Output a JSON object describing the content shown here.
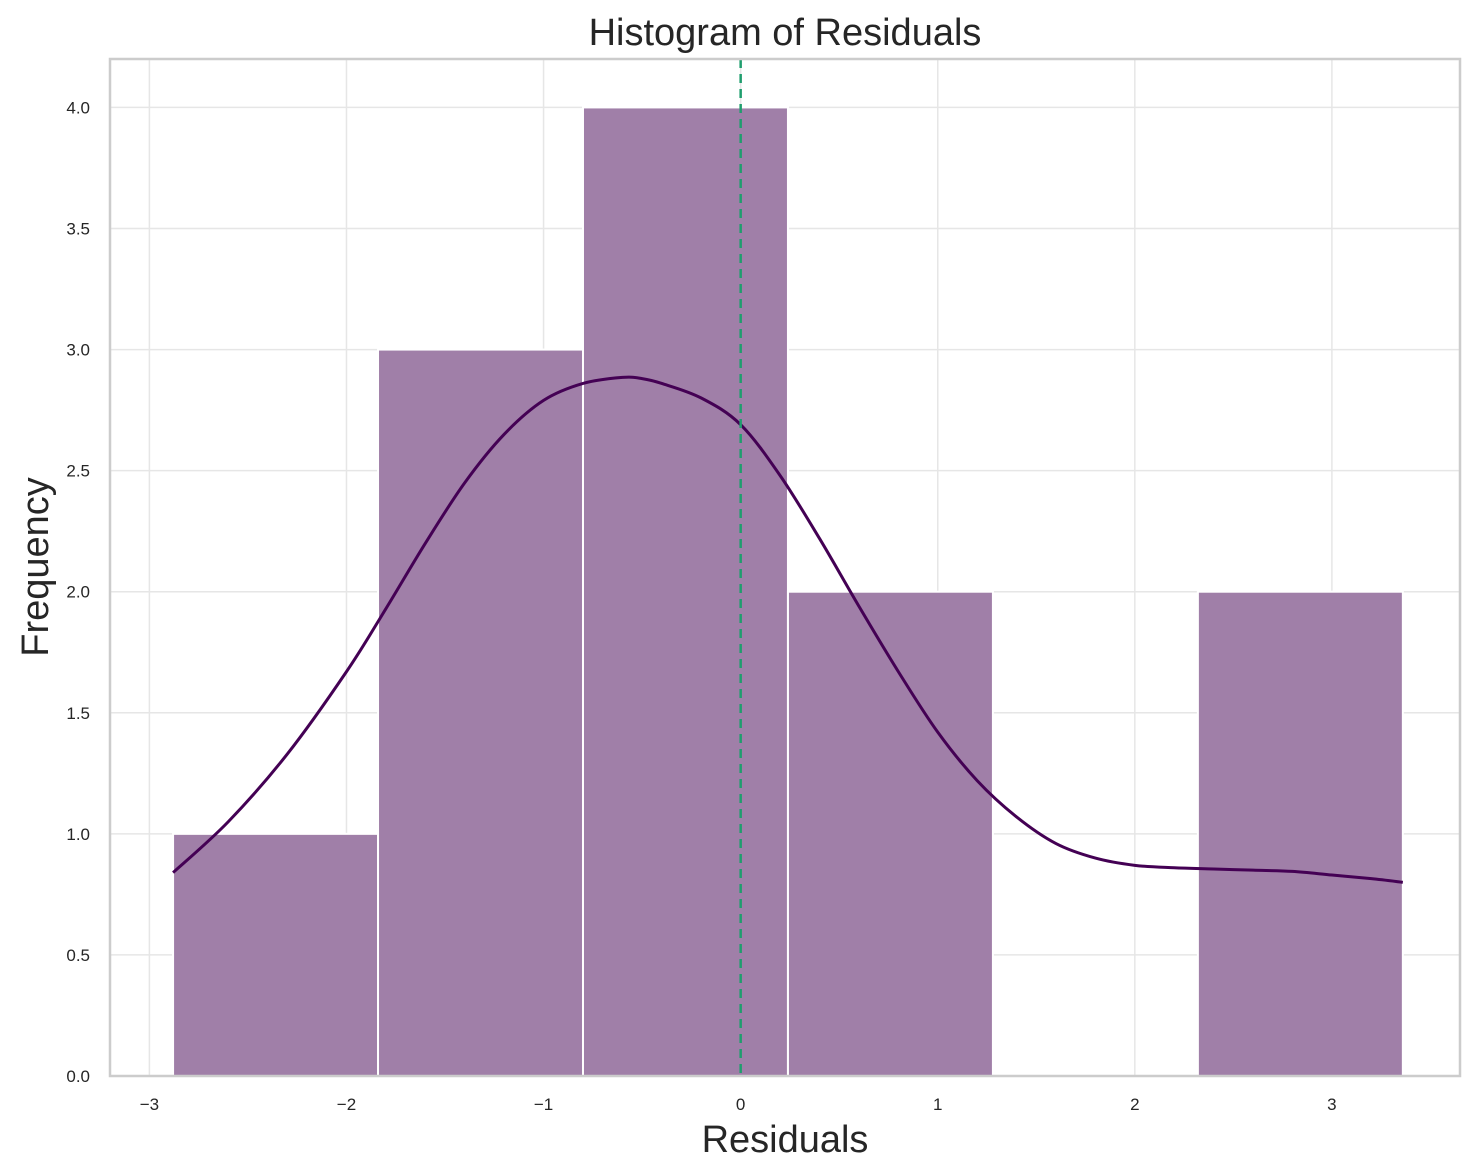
{
  "chart_data": {
    "type": "bar",
    "title": "Histogram of Residuals",
    "xlabel": "Residuals",
    "ylabel": "Frequency",
    "xlim": [
      -3.2,
      3.65
    ],
    "ylim": [
      0,
      4.2
    ],
    "xticks": [
      -3,
      -2,
      -1,
      0,
      1,
      2,
      3
    ],
    "xtick_labels": [
      "−3",
      "−2",
      "−1",
      "0",
      "1",
      "2",
      "3"
    ],
    "yticks": [
      0,
      0.5,
      1,
      1.5,
      2,
      2.5,
      3,
      3.5,
      4
    ],
    "ytick_labels": [
      "0.0",
      "0.5",
      "1.0",
      "1.5",
      "2.0",
      "2.5",
      "3.0",
      "3.5",
      "4.0"
    ],
    "grid": true,
    "bins": [
      {
        "x0": -2.88,
        "x1": -1.84,
        "count": 1
      },
      {
        "x0": -1.84,
        "x1": -0.8,
        "count": 3
      },
      {
        "x0": -0.8,
        "x1": 0.24,
        "count": 4
      },
      {
        "x0": 0.24,
        "x1": 1.28,
        "count": 2
      },
      {
        "x0": 1.28,
        "x1": 2.32,
        "count": 0
      },
      {
        "x0": 2.32,
        "x1": 3.36,
        "count": 2
      }
    ],
    "kde": {
      "x": [
        -2.88,
        -2.6,
        -2.3,
        -2.0,
        -1.8,
        -1.6,
        -1.4,
        -1.2,
        -1.0,
        -0.8,
        -0.6,
        -0.5,
        -0.4,
        -0.2,
        0.0,
        0.2,
        0.4,
        0.6,
        0.8,
        1.0,
        1.2,
        1.4,
        1.6,
        1.8,
        2.0,
        2.2,
        2.4,
        2.6,
        2.8,
        3.0,
        3.2,
        3.36
      ],
      "y": [
        0.84,
        1.05,
        1.33,
        1.67,
        1.93,
        2.2,
        2.45,
        2.65,
        2.79,
        2.86,
        2.885,
        2.88,
        2.86,
        2.8,
        2.69,
        2.48,
        2.22,
        1.94,
        1.67,
        1.42,
        1.22,
        1.07,
        0.96,
        0.9,
        0.87,
        0.86,
        0.855,
        0.85,
        0.845,
        0.83,
        0.815,
        0.8
      ]
    },
    "reference_line": {
      "x": 0,
      "color": "#1f9e6e",
      "style": "dashed"
    },
    "colors": {
      "bar": "#a07fa8",
      "kde": "#440154"
    }
  }
}
